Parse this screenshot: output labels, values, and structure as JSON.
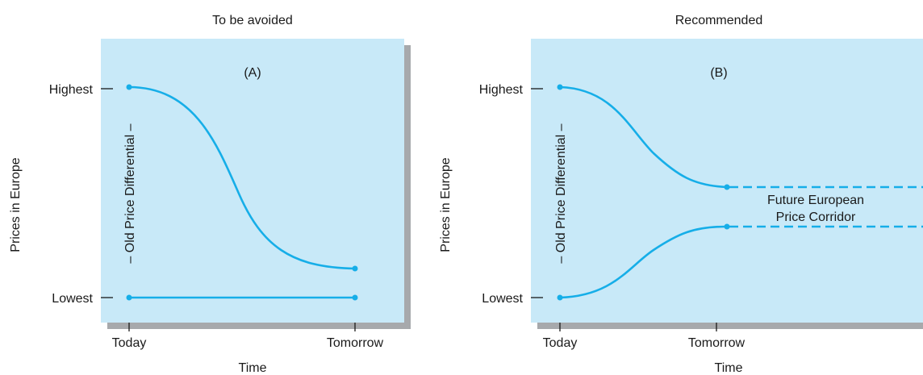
{
  "colors": {
    "panel_fill": "#c8e9f8",
    "shadow": "#a7a9ac",
    "curve": "#16aee8"
  },
  "panel_a": {
    "title": "To be avoided",
    "label": "(A)",
    "y_axis_label": "Prices in Europe",
    "y_high": "Highest",
    "y_low": "Lowest",
    "x_axis_label": "Time",
    "x_start": "Today",
    "x_end": "Tomorrow",
    "differential_label": "– Old Price Differential –"
  },
  "panel_b": {
    "title": "Recommended",
    "label": "(B)",
    "y_axis_label": "Prices in Europe",
    "y_high": "Highest",
    "y_low": "Lowest",
    "x_axis_label": "Time",
    "x_start": "Today",
    "x_end": "Tomorrow",
    "differential_label": "– Old Price Differential –",
    "corridor_label_line1": "Future European",
    "corridor_label_line2": "Price Corridor"
  }
}
